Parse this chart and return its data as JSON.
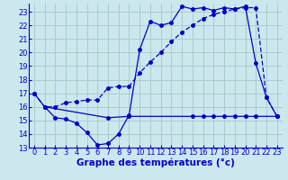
{
  "title": "Graphe des températures (°c)",
  "bg_color": "#cce8ee",
  "grid_color": "#aacccc",
  "line_color": "#0000cc",
  "xlim": [
    -0.5,
    23.5
  ],
  "ylim": [
    13,
    23.6
  ],
  "xticks": [
    0,
    1,
    2,
    3,
    4,
    5,
    6,
    7,
    8,
    9,
    10,
    11,
    12,
    13,
    14,
    15,
    16,
    17,
    18,
    19,
    20,
    21,
    22,
    23
  ],
  "yticks": [
    13,
    14,
    15,
    16,
    17,
    18,
    19,
    20,
    21,
    22,
    23
  ],
  "line1_x": [
    0,
    1,
    2,
    3,
    4,
    5,
    6,
    7,
    8,
    9,
    10,
    11,
    12,
    13,
    14,
    15,
    16,
    17,
    18,
    19,
    20,
    21,
    22,
    23
  ],
  "line1_y": [
    17.0,
    16.0,
    15.2,
    15.1,
    14.8,
    14.1,
    13.2,
    13.3,
    14.0,
    15.4,
    20.2,
    22.3,
    22.0,
    22.2,
    23.4,
    23.2,
    23.3,
    23.1,
    23.3,
    23.2,
    23.4,
    19.2,
    16.7,
    15.3
  ],
  "line2_x": [
    0,
    1,
    2,
    3,
    4,
    5,
    6,
    7,
    8,
    9,
    10,
    11,
    12,
    13,
    14,
    15,
    16,
    17,
    18,
    19,
    20,
    21,
    22,
    23
  ],
  "line2_y": [
    17.0,
    16.0,
    16.0,
    16.3,
    16.4,
    16.5,
    16.5,
    17.4,
    17.5,
    17.5,
    18.5,
    19.3,
    20.0,
    20.8,
    21.5,
    22.0,
    22.5,
    22.8,
    23.0,
    23.2,
    23.3,
    23.3,
    16.7,
    15.3
  ],
  "line3_x": [
    1,
    7,
    9,
    15,
    16,
    17,
    18,
    19,
    20,
    21,
    23
  ],
  "line3_y": [
    16.0,
    15.2,
    15.3,
    15.3,
    15.3,
    15.3,
    15.3,
    15.3,
    15.3,
    15.3,
    15.3
  ],
  "marker_size": 2.5,
  "font_size": 6,
  "xlabel_fontsize": 7.5
}
